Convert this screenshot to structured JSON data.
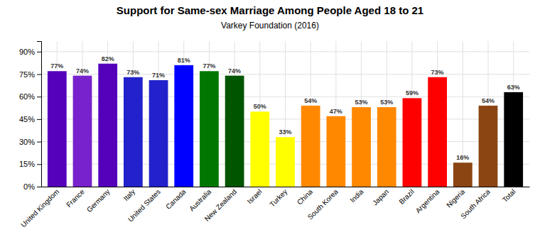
{
  "chart_data": {
    "type": "bar",
    "title": "Support for Same-sex Marriage Among People Aged 18 to 21",
    "subtitle": "Varkey Foundation (2016)",
    "categories": [
      "United Kingdom",
      "France",
      "Germany",
      "Italy",
      "United States",
      "Canada",
      "Australia",
      "New Zealand",
      "Israel",
      "Turkey",
      "China",
      "South Korea",
      "India",
      "Japan",
      "Brazil",
      "Argentina",
      "Nigeria",
      "South Africa",
      "Total"
    ],
    "values": [
      77,
      74,
      82,
      73,
      71,
      81,
      77,
      74,
      50,
      33,
      54,
      47,
      53,
      53,
      59,
      73,
      16,
      54,
      63
    ],
    "value_labels": [
      "77%",
      "74%",
      "82%",
      "73%",
      "71%",
      "81%",
      "77%",
      "74%",
      "50%",
      "33%",
      "54%",
      "47%",
      "53%",
      "53%",
      "59%",
      "73%",
      "16%",
      "54%",
      "63%"
    ],
    "data_labels": true,
    "colors": [
      "#5500bb",
      "#7722cc",
      "#5500bb",
      "#2222cc",
      "#2222cc",
      "#0000ff",
      "#007700",
      "#005500",
      "#ffff00",
      "#ffff00",
      "#ff8800",
      "#ff8800",
      "#ff8800",
      "#ff8800",
      "#ff0000",
      "#ff0000",
      "#8B4513",
      "#8B4513",
      "#000000"
    ],
    "ylim": [
      0,
      97
    ],
    "yticks": [
      {
        "value": 0,
        "label": "0%"
      },
      {
        "value": 15,
        "label": "15%"
      },
      {
        "value": 30,
        "label": "30%"
      },
      {
        "value": 45,
        "label": "45%"
      },
      {
        "value": 60,
        "label": "60%"
      },
      {
        "value": 75,
        "label": "75%"
      },
      {
        "value": 90,
        "label": "90%"
      }
    ],
    "grid": true
  }
}
